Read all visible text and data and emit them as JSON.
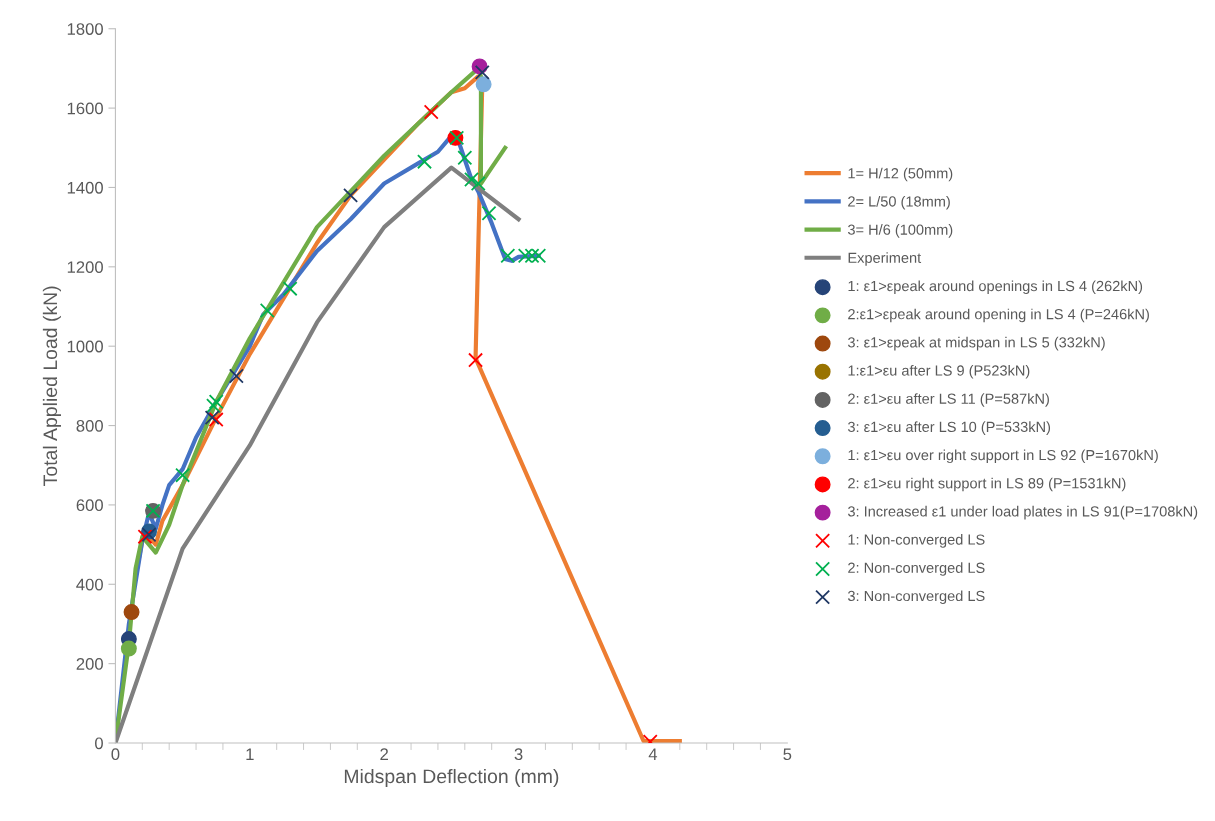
{
  "chart_data": {
    "type": "line",
    "xlabel": "Midspan Deflection (mm)",
    "ylabel": "Total Applied Load (kN)",
    "xlim": [
      0,
      5
    ],
    "xticks": [
      0,
      1,
      2,
      3,
      4,
      5
    ],
    "ylim": [
      0,
      1800
    ],
    "yticks": [
      0,
      200,
      400,
      600,
      800,
      1000,
      1200,
      1400,
      1600,
      1800
    ],
    "grid": false,
    "legend": "right",
    "series": [
      {
        "name": "1= H/12 (50mm)",
        "color": "#ed7d31",
        "x": [
          0.15,
          0.2,
          0.25,
          0.3,
          0.35,
          0.5,
          0.75,
          1,
          1.25,
          1.5,
          1.75,
          2,
          2.25,
          2.5,
          2.6,
          2.7,
          2.73,
          2.68,
          3.93,
          4.2
        ],
        "values": [
          420,
          510,
          520,
          500,
          560,
          650,
          820,
          980,
          1120,
          1260,
          1380,
          1470,
          1560,
          1640,
          1650,
          1680,
          1660,
          970,
          5,
          5
        ]
      },
      {
        "name": "2= L/50 (18mm)",
        "color": "#4472c4",
        "x": [
          0,
          0.1,
          0.2,
          0.25,
          0.3,
          0.35,
          0.4,
          0.5,
          0.6,
          0.75,
          1,
          1.1,
          1.25,
          1.5,
          1.75,
          2,
          2.25,
          2.4,
          2.5,
          2.55,
          2.65,
          2.7,
          2.8,
          2.9,
          2.95,
          3.0,
          3.15
        ],
        "values": [
          0,
          300,
          510,
          580,
          540,
          600,
          650,
          690,
          770,
          860,
          1000,
          1080,
          1130,
          1240,
          1320,
          1410,
          1460,
          1490,
          1530,
          1520,
          1420,
          1390,
          1310,
          1220,
          1215,
          1225,
          1228
        ]
      },
      {
        "name": "3= H/6 (100mm)",
        "color": "#70ad47",
        "x": [
          0,
          0.1,
          0.15,
          0.2,
          0.3,
          0.4,
          0.5,
          0.75,
          1,
          1.25,
          1.5,
          1.75,
          2,
          2.25,
          2.5,
          2.7,
          2.72,
          2.72,
          2.8,
          2.9
        ],
        "values": [
          0,
          250,
          440,
          520,
          480,
          550,
          650,
          860,
          1020,
          1160,
          1300,
          1390,
          1480,
          1560,
          1640,
          1700,
          1680,
          1410,
          1450,
          1500
        ]
      },
      {
        "name": "Experiment",
        "color": "#7f7f7f",
        "x": [
          0,
          0.5,
          1,
          1.5,
          2,
          2.5,
          3
        ],
        "values": [
          0,
          490,
          750,
          1060,
          1300,
          1450,
          1320
        ]
      },
      {
        "name": "1: ε1>εpeak around openings in LS 4 (262kN)",
        "type": "scatter",
        "marker": "circle",
        "color": "#264478",
        "x": [
          0.1
        ],
        "values": [
          262
        ]
      },
      {
        "name": "2:ε1>εpeak around opening in LS 4 (P=246kN)",
        "type": "scatter",
        "marker": "circle",
        "color": "#70ad47",
        "x": [
          0.1
        ],
        "values": [
          238
        ]
      },
      {
        "name": "3: ε1>εpeak at midspan in LS 5 (332kN)",
        "type": "scatter",
        "marker": "circle",
        "color": "#9e480e",
        "x": [
          0.12
        ],
        "values": [
          330
        ]
      },
      {
        "name": "1:ε1>εu after LS 9 (P523kN)",
        "type": "scatter",
        "marker": "circle",
        "color": "#997300",
        "x": [
          null
        ],
        "values": [
          null
        ]
      },
      {
        "name": "2: ε1>εu after LS 11 (P=587kN)",
        "type": "scatter",
        "marker": "circle",
        "color": "#636363",
        "x": [
          0.28
        ],
        "values": [
          585
        ]
      },
      {
        "name": "3: ε1>εu after LS 10 (P=533kN)",
        "type": "scatter",
        "marker": "circle",
        "color": "#255e91",
        "x": [
          0.25
        ],
        "values": [
          533
        ]
      },
      {
        "name": "1: ε1>εu over right support in LS 92 (P=1670kN)",
        "type": "scatter",
        "marker": "circle",
        "color": "#7cafdd",
        "x": [
          2.74
        ],
        "values": [
          1660
        ]
      },
      {
        "name": "2: ε1>εu right support in LS 89 (P=1531kN)",
        "type": "scatter",
        "marker": "circle",
        "color": "#ff0000",
        "x": [
          2.53
        ],
        "values": [
          1525
        ]
      },
      {
        "name": "3: Increased ε1 under load plates in LS 91(P=1708kN)",
        "type": "scatter",
        "marker": "circle",
        "color": "#a5209c",
        "x": [
          2.71
        ],
        "values": [
          1705
        ]
      },
      {
        "name": "1: Non-converged LS",
        "type": "scatter",
        "marker": "cross",
        "color": "#ff0000",
        "x": [
          0.22,
          0.75,
          2.35,
          2.68,
          3.98
        ],
        "values": [
          520,
          815,
          1590,
          965,
          3
        ]
      },
      {
        "name": "2: Non-converged LS",
        "type": "scatter",
        "marker": "cross",
        "color": "#00b050",
        "x": [
          0.28,
          0.5,
          0.73,
          0.75,
          1.13,
          1.3,
          2.3,
          2.54,
          2.6,
          2.65,
          2.7,
          2.78,
          2.92,
          3.05,
          3.1,
          3.15
        ],
        "values": [
          585,
          675,
          850,
          860,
          1090,
          1145,
          1465,
          1525,
          1475,
          1420,
          1410,
          1335,
          1228,
          1228,
          1228,
          1228
        ]
      },
      {
        "name": "3: Non-converged LS",
        "type": "scatter",
        "marker": "cross",
        "color": "#203864",
        "x": [
          0.25,
          0.72,
          0.9,
          1.75,
          2.73
        ],
        "values": [
          525,
          820,
          925,
          1380,
          1690
        ]
      }
    ]
  }
}
